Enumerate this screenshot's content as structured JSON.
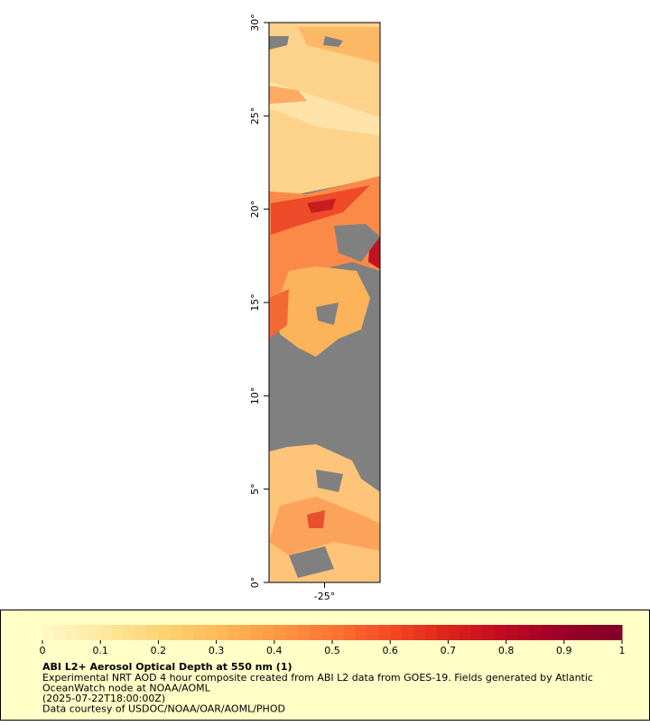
{
  "map": {
    "lat_lim": [
      0,
      30
    ],
    "lon_lim": [
      -28,
      -22
    ],
    "lat_ticks": [
      {
        "value": 0,
        "label": "0°"
      },
      {
        "value": 5,
        "label": "5°"
      },
      {
        "value": 10,
        "label": "10°"
      },
      {
        "value": 15,
        "label": "15°"
      },
      {
        "value": 20,
        "label": "20°"
      },
      {
        "value": 25,
        "label": "25°"
      },
      {
        "value": 30,
        "label": "30°"
      }
    ],
    "lon_ticks": [
      {
        "value": -25,
        "label": "-25°"
      }
    ],
    "background_color": "#808080"
  },
  "colorbar": {
    "title": "ABI L2+ Aerosol Optical Depth at 550 nm (1)",
    "lim": [
      0,
      1
    ],
    "ticks": [
      0,
      0.1,
      0.2,
      0.3,
      0.4,
      0.5,
      0.6,
      0.7,
      0.8,
      0.9,
      1
    ],
    "colors": [
      "#fff8c8",
      "#fee9a0",
      "#fed476",
      "#fdbb5a",
      "#fd9a44",
      "#fc7434",
      "#f44a25",
      "#de2219",
      "#c00a22",
      "#9a0028",
      "#800026"
    ]
  },
  "notes": [
    "Experimental NRT AOD 4 hour composite created from ABI L2 data from GOES-19. Fields generated by Atlantic",
    "OceanWatch node at NOAA/AOML",
    "(2025-07-22T18:00:00Z)",
    "Data courtesy of USDOC/NOAA/OAR/AOML/PHOD"
  ]
}
